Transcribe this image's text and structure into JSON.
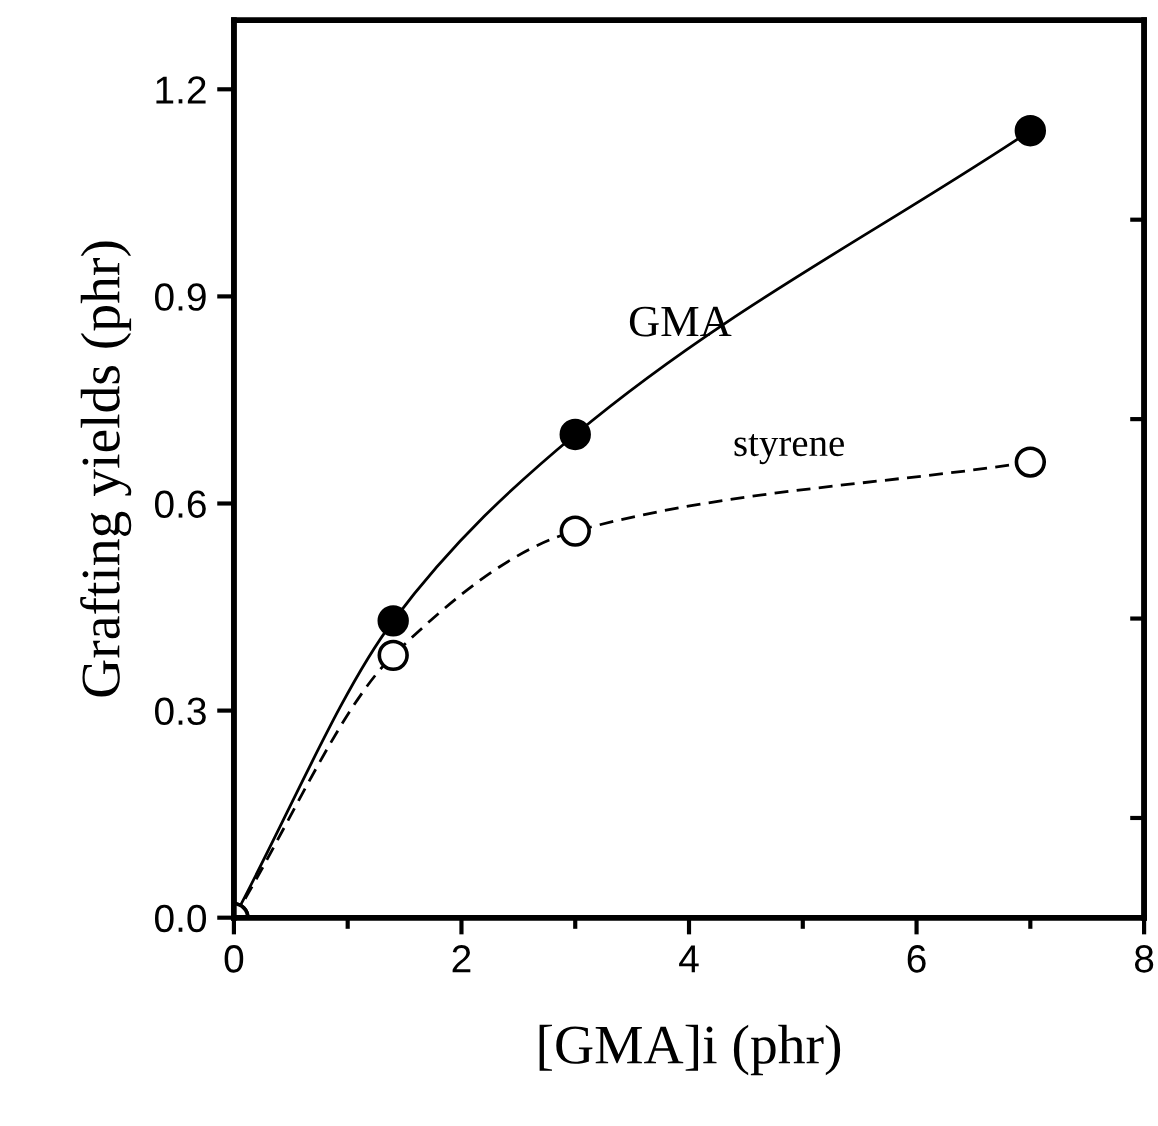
{
  "chart_data": {
    "type": "line",
    "xlabel": "[GMA]i (phr)",
    "ylabel": "Grafting yields (phr)",
    "x": [
      0,
      1.4,
      3,
      7
    ],
    "series": [
      {
        "name": "GMA",
        "color": "#000000",
        "values": [
          0,
          0.43,
          0.7,
          1.14
        ],
        "line_style": "solid"
      },
      {
        "name": "styrene",
        "color": "#000000",
        "values": [
          0,
          0.38,
          0.56,
          0.66
        ],
        "line_style": "dashed"
      }
    ],
    "xlim": [
      0,
      8
    ],
    "xticks": [
      0,
      2,
      4,
      6,
      8
    ],
    "ylim": [
      0,
      1.3
    ],
    "yticks": [
      {
        "value": 0,
        "label": "0.0"
      },
      0.3,
      0.6,
      0.9,
      1.2
    ],
    "marker": "circle",
    "grid": false,
    "legend": false
  }
}
